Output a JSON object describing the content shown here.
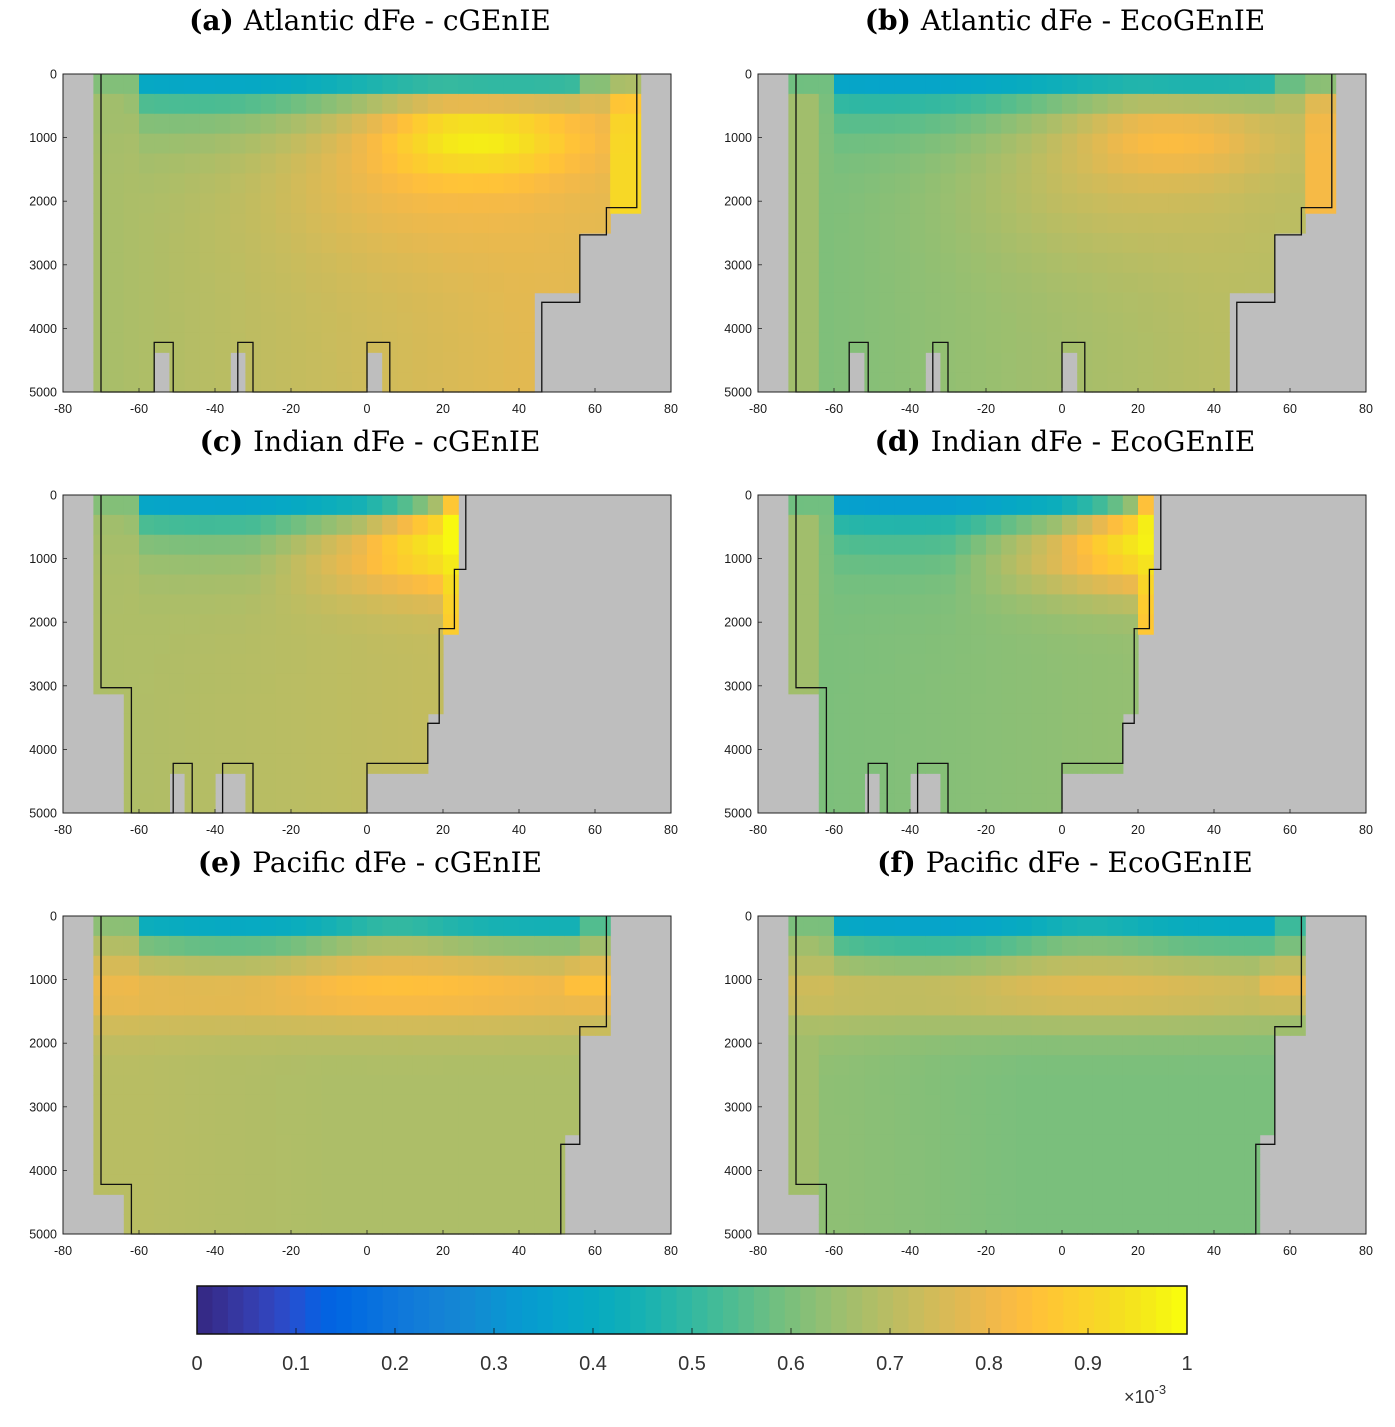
{
  "chart_data": [
    {
      "type": "heatmap",
      "label": "(a)",
      "title": "Atlantic dFe - cGEnIE",
      "basin": "atlantic",
      "x_ticks": [
        "-80",
        "-60",
        "-40",
        "-20",
        "0",
        "20",
        "40",
        "60",
        "80"
      ],
      "y_ticks": [
        "0",
        "1000",
        "2000",
        "3000",
        "4000",
        "5000"
      ],
      "xlim": [
        -80,
        80
      ],
      "ylim": [
        0,
        5000
      ],
      "y_reversed": true,
      "land_color": "#bebebe",
      "max_value": 0.98,
      "north_max": 0.92,
      "surface_min": 0.26,
      "deep_value": 0.78,
      "deep_south_value": 0.67,
      "seafloor": [
        [
          -70,
          5000
        ],
        [
          -56,
          4220
        ],
        [
          -51,
          5000
        ],
        [
          -34,
          4220
        ],
        [
          -30,
          5000
        ],
        [
          0,
          4220
        ],
        [
          6,
          5000
        ],
        [
          42,
          5000
        ],
        [
          46,
          4220
        ],
        [
          46,
          3590
        ],
        [
          56,
          3590
        ],
        [
          56,
          2530
        ],
        [
          63,
          2530
        ],
        [
          63,
          2100
        ],
        [
          71,
          2100
        ],
        [
          71,
          0
        ]
      ]
    },
    {
      "type": "heatmap",
      "label": "(b)",
      "title": "Atlantic dFe - EcoGEnIE",
      "basin": "atlantic",
      "x_ticks": [
        "-80",
        "-60",
        "-40",
        "-20",
        "0",
        "20",
        "40",
        "60",
        "80"
      ],
      "y_ticks": [
        "0",
        "1000",
        "2000",
        "3000",
        "4000",
        "5000"
      ],
      "xlim": [
        -80,
        80
      ],
      "ylim": [
        0,
        5000
      ],
      "y_reversed": true,
      "land_color": "#bebebe",
      "max_value": 0.83,
      "north_max": 0.82,
      "surface_min": 0.27,
      "deep_value": 0.7,
      "deep_south_value": 0.6,
      "seafloor": [
        [
          -70,
          5000
        ],
        [
          -56,
          4220
        ],
        [
          -51,
          5000
        ],
        [
          -34,
          4220
        ],
        [
          -30,
          5000
        ],
        [
          0,
          4220
        ],
        [
          6,
          5000
        ],
        [
          42,
          5000
        ],
        [
          46,
          4220
        ],
        [
          46,
          3590
        ],
        [
          56,
          3590
        ],
        [
          56,
          2530
        ],
        [
          63,
          2530
        ],
        [
          63,
          2100
        ],
        [
          71,
          2100
        ],
        [
          71,
          0
        ]
      ]
    },
    {
      "type": "heatmap",
      "label": "(c)",
      "title": "Indian dFe - cGEnIE",
      "basin": "indian",
      "x_ticks": [
        "-80",
        "-60",
        "-40",
        "-20",
        "0",
        "20",
        "40",
        "60",
        "80"
      ],
      "y_ticks": [
        "0",
        "1000",
        "2000",
        "3000",
        "4000",
        "5000"
      ],
      "xlim": [
        -80,
        80
      ],
      "ylim": [
        0,
        5000
      ],
      "y_reversed": true,
      "land_color": "#bebebe",
      "max_value": 1.0,
      "north_max": 1.0,
      "surface_min": 0.24,
      "deep_value": 0.72,
      "deep_south_value": 0.68,
      "seafloor": [
        [
          -70,
          3030
        ],
        [
          -62,
          5000
        ],
        [
          -51,
          4220
        ],
        [
          -46,
          5000
        ],
        [
          -38,
          4220
        ],
        [
          -30,
          5000
        ],
        [
          0,
          4220
        ],
        [
          16,
          3590
        ],
        [
          19,
          2100
        ],
        [
          23,
          1170
        ],
        [
          26,
          0
        ]
      ]
    },
    {
      "type": "heatmap",
      "label": "(d)",
      "title": "Indian dFe - EcoGEnIE",
      "basin": "indian",
      "x_ticks": [
        "-80",
        "-60",
        "-40",
        "-20",
        "0",
        "20",
        "40",
        "60",
        "80"
      ],
      "y_ticks": [
        "0",
        "1000",
        "2000",
        "3000",
        "4000",
        "5000"
      ],
      "xlim": [
        -80,
        80
      ],
      "ylim": [
        0,
        5000
      ],
      "y_reversed": true,
      "land_color": "#bebebe",
      "max_value": 1.0,
      "north_max": 0.98,
      "surface_min": 0.24,
      "deep_value": 0.64,
      "deep_south_value": 0.6,
      "seafloor": [
        [
          -70,
          3030
        ],
        [
          -62,
          5000
        ],
        [
          -51,
          4220
        ],
        [
          -46,
          5000
        ],
        [
          -38,
          4220
        ],
        [
          -30,
          5000
        ],
        [
          0,
          4220
        ],
        [
          16,
          3590
        ],
        [
          19,
          2100
        ],
        [
          23,
          1170
        ],
        [
          26,
          0
        ]
      ]
    },
    {
      "type": "heatmap",
      "label": "(e)",
      "title": "Pacific dFe - cGEnIE",
      "basin": "pacific",
      "x_ticks": [
        "-80",
        "-60",
        "-40",
        "-20",
        "0",
        "20",
        "40",
        "60",
        "80"
      ],
      "y_ticks": [
        "0",
        "1000",
        "2000",
        "3000",
        "4000",
        "5000"
      ],
      "xlim": [
        -80,
        80
      ],
      "ylim": [
        0,
        5000
      ],
      "y_reversed": true,
      "land_color": "#bebebe",
      "max_value": 0.85,
      "north_max": 0.86,
      "surface_min": 0.27,
      "deep_value": 0.68,
      "deep_south_value": 0.7,
      "seafloor": [
        [
          -70,
          4220
        ],
        [
          -62,
          5000
        ],
        [
          51,
          5000
        ],
        [
          51,
          3590
        ],
        [
          56,
          3590
        ],
        [
          56,
          1740
        ],
        [
          63,
          1740
        ],
        [
          63,
          0
        ]
      ]
    },
    {
      "type": "heatmap",
      "label": "(f)",
      "title": "Pacific dFe - EcoGEnIE",
      "basin": "pacific",
      "x_ticks": [
        "-80",
        "-60",
        "-40",
        "-20",
        "0",
        "20",
        "40",
        "60",
        "80"
      ],
      "y_ticks": [
        "0",
        "1000",
        "2000",
        "3000",
        "4000",
        "5000"
      ],
      "xlim": [
        -80,
        80
      ],
      "ylim": [
        0,
        5000
      ],
      "y_reversed": true,
      "land_color": "#bebebe",
      "max_value": 0.78,
      "north_max": 0.8,
      "surface_min": 0.26,
      "deep_value": 0.6,
      "deep_south_value": 0.63,
      "seafloor": [
        [
          -70,
          4220
        ],
        [
          -62,
          5000
        ],
        [
          51,
          5000
        ],
        [
          51,
          3590
        ],
        [
          56,
          3590
        ],
        [
          56,
          1740
        ],
        [
          63,
          1740
        ],
        [
          63,
          0
        ]
      ]
    }
  ],
  "colorbar": {
    "colormap": "parula",
    "ticks": [
      "0",
      "0.1",
      "0.2",
      "0.3",
      "0.4",
      "0.5",
      "0.6",
      "0.7",
      "0.8",
      "0.9",
      "1"
    ],
    "range": [
      0,
      1
    ],
    "exponent_label": "×10",
    "exponent_power": "-3"
  }
}
